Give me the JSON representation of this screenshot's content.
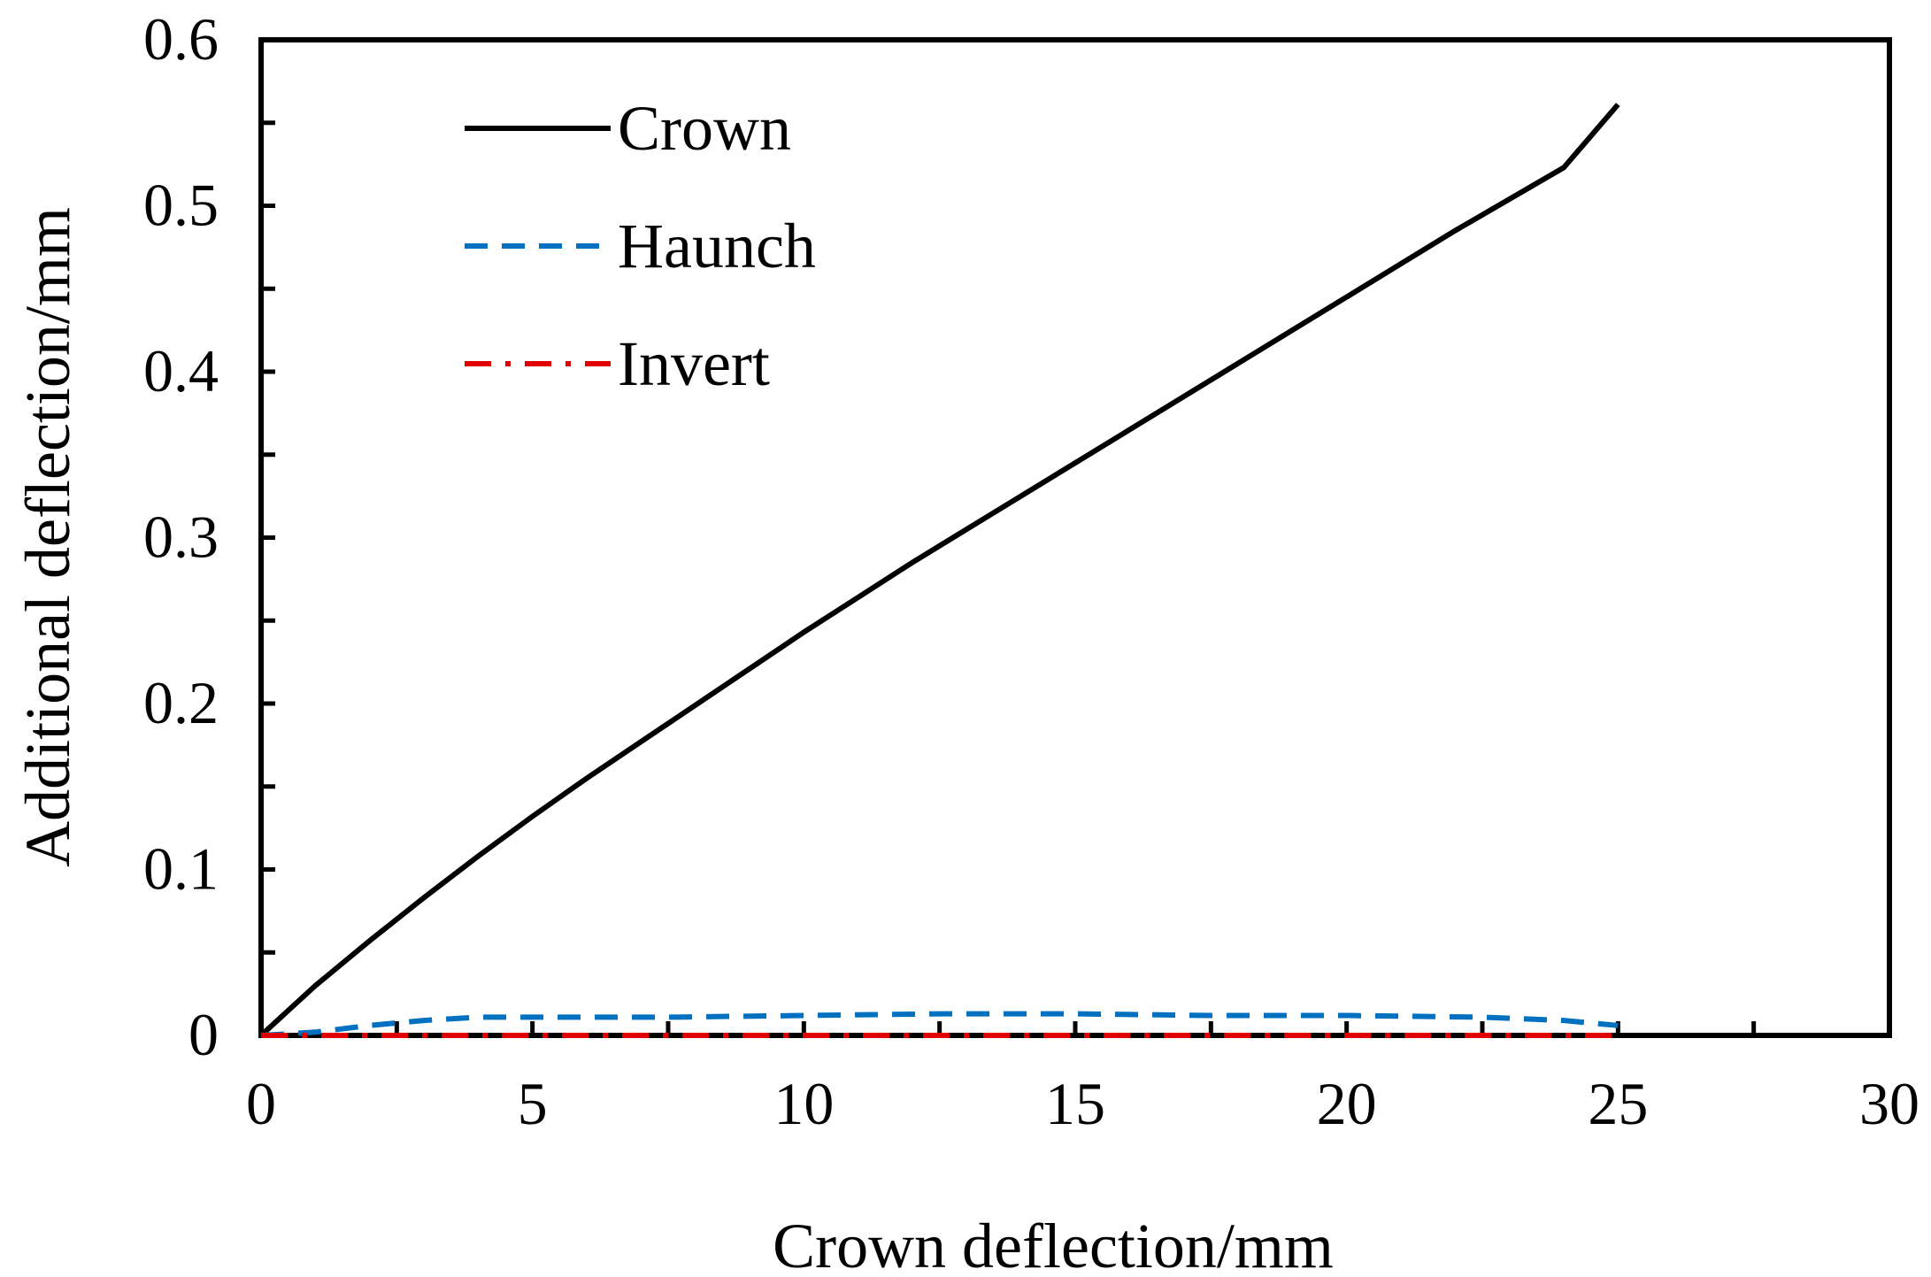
{
  "chart_data": {
    "type": "line",
    "title": "",
    "xlabel": "Crown deflection/mm",
    "ylabel": "Additional deflection/mm",
    "xlim": [
      0,
      30
    ],
    "ylim": [
      0,
      0.6
    ],
    "x_ticks": [
      0,
      5,
      10,
      15,
      20,
      25,
      30
    ],
    "x_tick_labels": [
      "0",
      "5",
      "10",
      "15",
      "20",
      "25",
      "30"
    ],
    "y_ticks": [
      0,
      0.1,
      0.2,
      0.3,
      0.4,
      0.5,
      0.6
    ],
    "y_tick_labels": [
      "0",
      "0.1",
      "0.2",
      "0.3",
      "0.4",
      "0.5",
      "0.6"
    ],
    "grid": false,
    "legend_position": "top-left",
    "series": [
      {
        "name": "Crown",
        "color": "#000000",
        "style": "solid",
        "x": [
          0,
          1,
          2,
          3,
          4,
          5,
          6,
          7,
          8,
          9,
          10,
          11,
          12,
          13,
          14,
          15,
          16,
          17,
          18,
          19,
          20,
          21,
          22,
          23,
          24,
          25
        ],
        "y": [
          0,
          0.03,
          0.057,
          0.083,
          0.108,
          0.132,
          0.155,
          0.177,
          0.199,
          0.221,
          0.243,
          0.264,
          0.285,
          0.305,
          0.325,
          0.345,
          0.365,
          0.385,
          0.405,
          0.425,
          0.445,
          0.465,
          0.485,
          0.504,
          0.523,
          0.561
        ]
      },
      {
        "name": "Haunch",
        "color": "#0070C0",
        "style": "dashed",
        "x": [
          0,
          1,
          2,
          3,
          4,
          5,
          7.5,
          10,
          12.5,
          15,
          17.5,
          20,
          22.5,
          24,
          25
        ],
        "y": [
          0,
          0.002,
          0.006,
          0.009,
          0.011,
          0.011,
          0.011,
          0.012,
          0.013,
          0.013,
          0.012,
          0.012,
          0.011,
          0.009,
          0.006
        ]
      },
      {
        "name": "Invert",
        "color": "#E00000",
        "style": "dashdot",
        "x": [
          0,
          5,
          10,
          15,
          20,
          25
        ],
        "y": [
          0,
          0,
          0,
          0,
          0,
          0
        ]
      }
    ]
  }
}
